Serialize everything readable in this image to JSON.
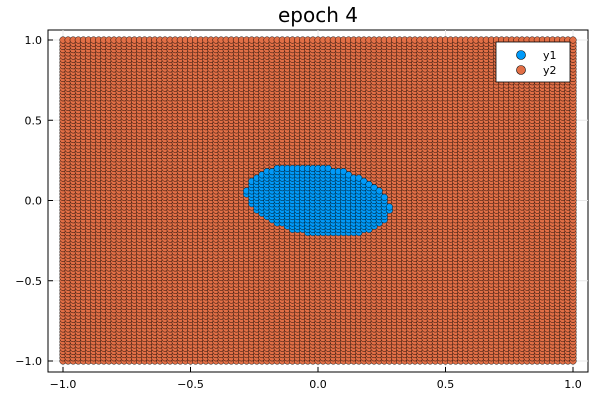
{
  "chart_data": {
    "type": "scatter",
    "title": "epoch 4",
    "xlabel": "",
    "ylabel": "",
    "xlim": [
      -1.0,
      1.0
    ],
    "ylim": [
      -1.0,
      1.0
    ],
    "x_ticks": [
      "-1.0",
      "-0.5",
      "0.0",
      "0.5",
      "1.0"
    ],
    "y_ticks": [
      "-1.0",
      "-0.5",
      "0.0",
      "0.5",
      "1.0"
    ],
    "grid": true,
    "legend_position": "top-right",
    "grid_points": {
      "x_start": -1.0,
      "x_stop": 1.0,
      "x_count": 101,
      "y_start": -1.0,
      "y_stop": 1.0,
      "y_count": 101
    },
    "series": [
      {
        "name": "y1",
        "color": "#009af9",
        "region": "ellipse",
        "center": [
          0.0,
          0.0
        ],
        "semi_axes": [
          0.29,
          0.205
        ],
        "rotation_deg": -20
      },
      {
        "name": "y2",
        "color": "#e26f46",
        "region": "complement"
      }
    ]
  }
}
